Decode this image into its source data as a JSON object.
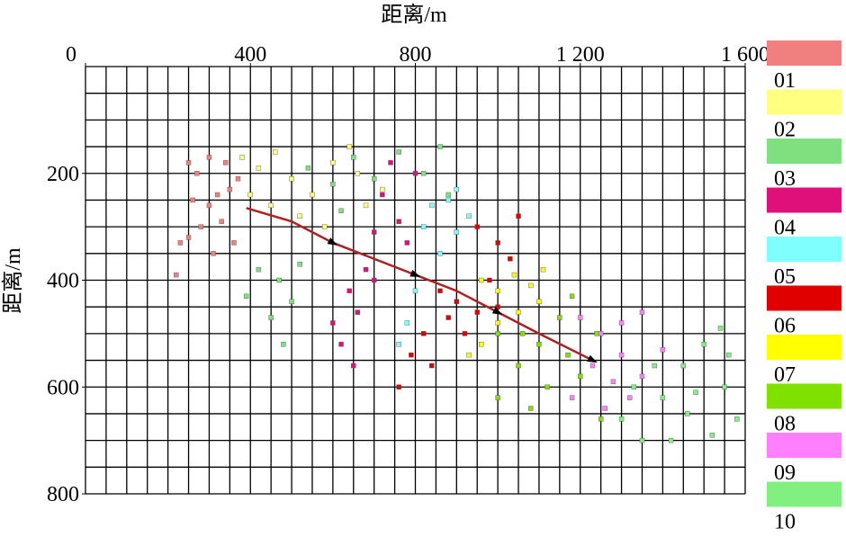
{
  "chart_data": {
    "type": "scatter",
    "x_label": "距离/m",
    "y_label": "距离/m",
    "xlim": [
      0,
      1600
    ],
    "ylim": [
      0,
      800
    ],
    "y_inverted": true,
    "x_axis_position": "top",
    "xticks": [
      0,
      400,
      800,
      {
        "value": 1200,
        "label": "1 200"
      },
      {
        "value": 1600,
        "label": "1 600"
      }
    ],
    "yticks": [
      200,
      400,
      600,
      800
    ],
    "grid": true,
    "grid_spacing": 50,
    "legend": "right",
    "series": [
      {
        "name": "01",
        "color": "#f08080",
        "x": [
          250,
          270,
          300,
          320,
          230,
          250,
          300,
          350,
          370,
          280,
          330,
          220,
          310,
          360,
          260,
          340
        ],
        "values": [
          180,
          200,
          170,
          240,
          330,
          320,
          260,
          230,
          210,
          300,
          290,
          390,
          350,
          330,
          250,
          180
        ]
      },
      {
        "name": "02",
        "color": "#ffff80",
        "x": [
          380,
          420,
          460,
          500,
          550,
          600,
          640,
          680,
          720,
          450,
          520,
          400,
          580,
          660
        ],
        "values": [
          170,
          190,
          160,
          210,
          240,
          180,
          150,
          260,
          230,
          260,
          280,
          240,
          300,
          200
        ]
      },
      {
        "name": "03",
        "color": "#80e080",
        "x": [
          540,
          600,
          650,
          700,
          760,
          820,
          860,
          880,
          620,
          420,
          470,
          500,
          450,
          520,
          390,
          480
        ],
        "values": [
          190,
          220,
          170,
          210,
          160,
          200,
          150,
          240,
          270,
          380,
          400,
          440,
          470,
          370,
          430,
          520
        ]
      },
      {
        "name": "04",
        "color": "#e0107a",
        "x": [
          720,
          760,
          700,
          800,
          740,
          780,
          640,
          680,
          660,
          620,
          700,
          650,
          600
        ],
        "values": [
          240,
          290,
          310,
          200,
          180,
          330,
          420,
          380,
          460,
          520,
          400,
          560,
          480
        ]
      },
      {
        "name": "05",
        "color": "#80ffff",
        "x": [
          880,
          900,
          860,
          930,
          820,
          780,
          800,
          760,
          900,
          840
        ],
        "values": [
          250,
          310,
          350,
          280,
          300,
          480,
          420,
          520,
          230,
          260
        ]
      },
      {
        "name": "06",
        "color": "#e00000",
        "x": [
          950,
          1000,
          1050,
          1030,
          980,
          950,
          880,
          820,
          790,
          840,
          900,
          760,
          1000,
          920,
          860
        ],
        "values": [
          300,
          330,
          280,
          360,
          400,
          460,
          470,
          500,
          540,
          560,
          440,
          600,
          450,
          500,
          420
        ]
      },
      {
        "name": "07",
        "color": "#ffff00",
        "x": [
          960,
          1000,
          1040,
          1080,
          1110,
          1000,
          960,
          1050,
          1100,
          930
        ],
        "values": [
          400,
          420,
          390,
          410,
          380,
          480,
          520,
          460,
          440,
          540
        ]
      },
      {
        "name": "08",
        "color": "#80e000",
        "x": [
          1000,
          1050,
          1100,
          1150,
          1180,
          1200,
          1120,
          1080,
          1000,
          1250,
          1170,
          1240,
          1060
        ],
        "values": [
          500,
          560,
          520,
          470,
          430,
          580,
          600,
          640,
          620,
          660,
          540,
          500,
          500
        ]
      },
      {
        "name": "09",
        "color": "#ff80ff",
        "x": [
          1200,
          1250,
          1300,
          1350,
          1230,
          1280,
          1320,
          1260,
          1400,
          1350,
          1180,
          1300
        ],
        "values": [
          470,
          500,
          480,
          460,
          560,
          590,
          620,
          640,
          530,
          580,
          620,
          540
        ]
      },
      {
        "name": "10",
        "color": "#80f080",
        "x": [
          1300,
          1350,
          1400,
          1450,
          1500,
          1550,
          1580,
          1520,
          1460,
          1380,
          1420,
          1560,
          1330,
          1480,
          1540
        ],
        "values": [
          660,
          700,
          620,
          560,
          520,
          600,
          660,
          690,
          650,
          560,
          700,
          540,
          600,
          610,
          490
        ]
      }
    ],
    "trend_line": {
      "color": "#b02020",
      "x": [
        390,
        500,
        600,
        700,
        800,
        900,
        1000,
        1100,
        1230
      ],
      "values": [
        265,
        290,
        330,
        360,
        390,
        420,
        460,
        500,
        550
      ]
    }
  }
}
